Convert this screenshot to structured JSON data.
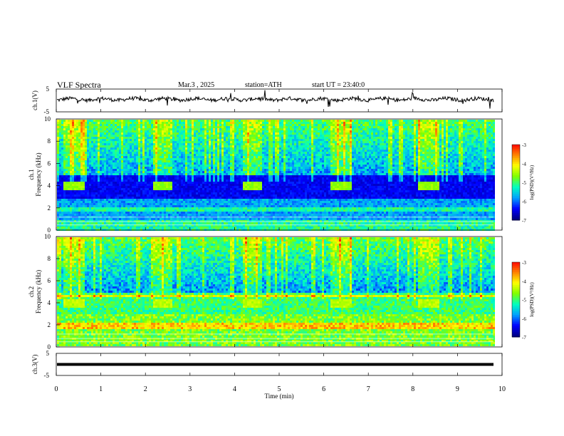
{
  "header": {
    "title": "VLF  Spectra",
    "date": "Mar.3  , 2025",
    "station": "station=ATH",
    "start_ut": "start  UT  =   23:40:0"
  },
  "colors": {
    "cmap": [
      "#000080",
      "#0000ff",
      "#00a0ff",
      "#00ffc0",
      "#80ff00",
      "#ffff00",
      "#ff8000",
      "#ff0000",
      "#ffffff"
    ],
    "trace": "#000000"
  },
  "chart_data": [
    {
      "type": "line",
      "ylabel": "ch.1(V)",
      "ylim": [
        -5,
        5
      ],
      "yticks": [
        "5",
        "-5"
      ],
      "xlim": [
        0,
        10
      ],
      "description_values": "waveform oscillating near +0.5 V with sporadic spikes",
      "level": 0.5
    },
    {
      "type": "heatmap",
      "ylabel": "ch.1\nFrequency  (kHz)",
      "ylim": [
        0,
        10
      ],
      "yticks": [
        "0",
        "2",
        "4",
        "6",
        "8",
        "10"
      ],
      "xlim": [
        0,
        10
      ],
      "colorbar": {
        "label": "log(PSD)(V²/Hz)",
        "range": [
          -7,
          -3
        ],
        "ticks": [
          "-3",
          "-4",
          "-5",
          "-6",
          "-7"
        ]
      },
      "bursts_min": [
        0.15,
        2.15,
        4.15,
        6.15,
        8.1
      ],
      "burst_length_min": 0.45
    },
    {
      "type": "heatmap",
      "ylabel": "ch.2\nFrequency  (kHz)",
      "ylim": [
        0,
        10
      ],
      "yticks": [
        "0",
        "2",
        "4",
        "6",
        "8",
        "10"
      ],
      "xlim": [
        0,
        10
      ],
      "colorbar": {
        "label": "log(PSD)(V²/Hz)",
        "range": [
          -7,
          -3
        ],
        "ticks": [
          "-3",
          "-4",
          "-5",
          "-6",
          "-7"
        ]
      },
      "bursts_min": [
        0.15,
        2.15,
        4.15,
        6.15,
        8.1
      ],
      "burst_length_min": 0.45
    },
    {
      "type": "line",
      "ylabel": "ch.3(V)",
      "ylim": [
        -5,
        5
      ],
      "yticks": [
        "5",
        "-5"
      ],
      "xlim": [
        0,
        10
      ],
      "level": 0
    }
  ],
  "xaxis": {
    "label": "Time  (min)",
    "ticks": [
      "0",
      "1",
      "2",
      "3",
      "4",
      "5",
      "6",
      "7",
      "8",
      "9",
      "10"
    ]
  }
}
